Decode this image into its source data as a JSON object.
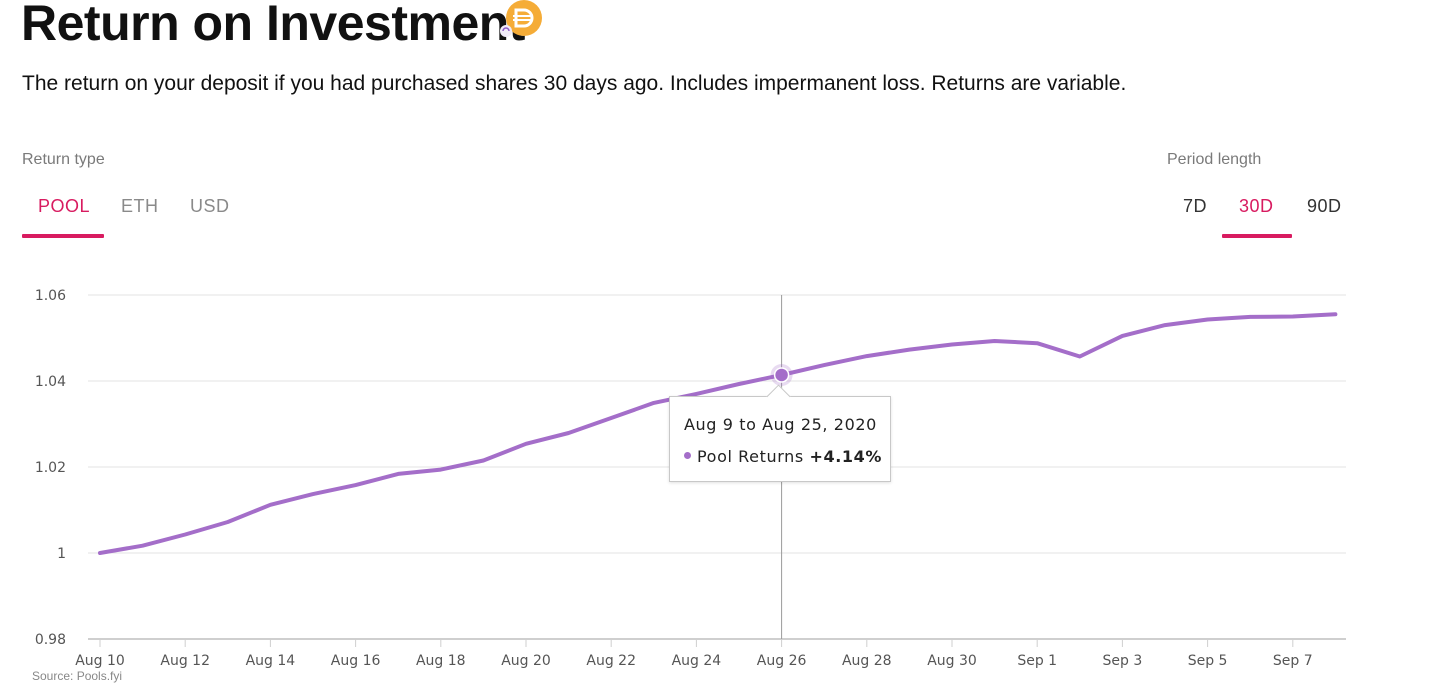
{
  "header": {
    "title": "Return on Investment",
    "subtitle": "The return on your deposit if you had purchased shares 30 days ago. Includes impermanent loss. Returns are variable.",
    "token_icon": "dai-coin-icon"
  },
  "controls": {
    "return_type_label": "Return type",
    "return_types": [
      "POOL",
      "ETH",
      "USD"
    ],
    "selected_return_type": "POOL",
    "period_label": "Period length",
    "periods": [
      "7D",
      "30D",
      "90D"
    ],
    "selected_period": "30D"
  },
  "colors": {
    "accent": "#d81b60",
    "series": "#a46ec9",
    "grid": "#e3e3e3"
  },
  "chart_data": {
    "type": "line",
    "title": "",
    "xlabel": "",
    "ylabel": "",
    "ylim": [
      0.98,
      1.06
    ],
    "yticks": [
      "0.98",
      "1",
      "1.02",
      "1.04",
      "1.06"
    ],
    "xticks": [
      "Aug 10",
      "Aug 12",
      "Aug 14",
      "Aug 16",
      "Aug 18",
      "Aug 20",
      "Aug 22",
      "Aug 24",
      "Aug 26",
      "Aug 28",
      "Aug 30",
      "Sep 1",
      "Sep 3",
      "Sep 5",
      "Sep 7"
    ],
    "grid": true,
    "series": [
      {
        "name": "Pool Returns",
        "x": [
          "Aug 10",
          "Aug 11",
          "Aug 12",
          "Aug 13",
          "Aug 14",
          "Aug 15",
          "Aug 16",
          "Aug 17",
          "Aug 18",
          "Aug 19",
          "Aug 20",
          "Aug 21",
          "Aug 22",
          "Aug 23",
          "Aug 24",
          "Aug 25",
          "Aug 26",
          "Aug 27",
          "Aug 28",
          "Aug 29",
          "Aug 30",
          "Aug 31",
          "Sep 1",
          "Sep 2",
          "Sep 3",
          "Sep 4",
          "Sep 5",
          "Sep 6",
          "Sep 7",
          "Sep 8"
        ],
        "y": [
          1.0,
          1.0017,
          1.0043,
          1.0072,
          1.0112,
          1.0137,
          1.0158,
          1.0184,
          1.0194,
          1.0215,
          1.0254,
          1.0279,
          1.0314,
          1.0349,
          1.037,
          1.0393,
          1.0414,
          1.0437,
          1.0458,
          1.0473,
          1.0485,
          1.0493,
          1.0488,
          1.0457,
          1.0505,
          1.053,
          1.0543,
          1.0549,
          1.055,
          1.0555
        ]
      }
    ],
    "tooltip": {
      "title": "Aug 9 to Aug 25, 2020",
      "series_name": "Pool Returns",
      "value": "+4.14%",
      "x": "Aug 26",
      "y": 1.0414
    }
  },
  "footer": {
    "source": "Source: Pools.fyi"
  }
}
